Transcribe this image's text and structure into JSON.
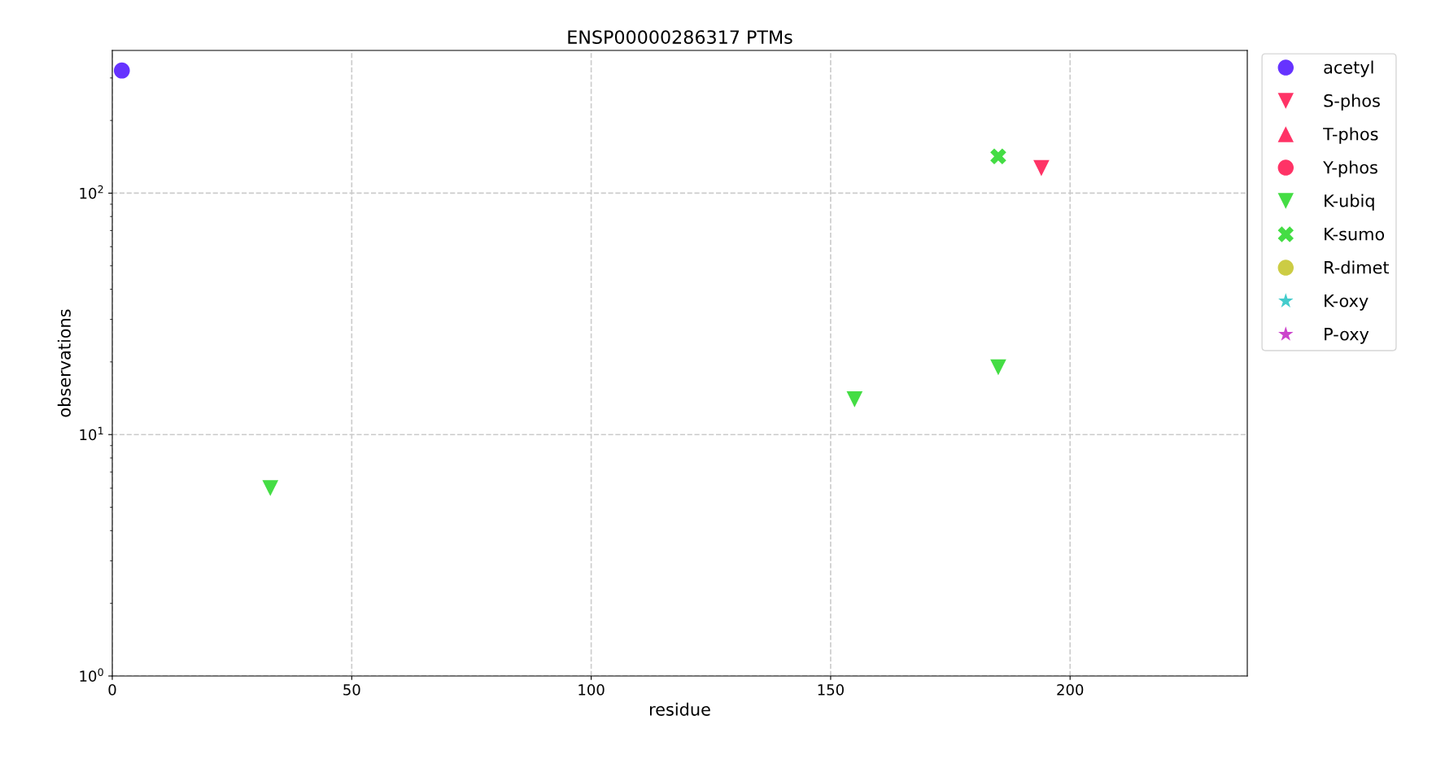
{
  "chart_data": {
    "type": "scatter",
    "title": "ENSP00000286317 PTMs",
    "xlabel": "residue",
    "ylabel": "observations",
    "log": "y",
    "grid": true,
    "line_style": "dashed",
    "legend": "top right",
    "xlim": [
      0,
      237
    ],
    "xticks": [
      0,
      50,
      100,
      150,
      200
    ],
    "ylim": [
      1,
      390
    ],
    "yticks": [
      {
        "value": 1,
        "label": "10$^{0}$"
      },
      {
        "value": 10,
        "label": "10$^{1}$"
      },
      {
        "value": 100,
        "label": "10$^{2}$"
      }
    ],
    "series": [
      {
        "name": "acetyl",
        "color": "#6633ff",
        "marker": "circle",
        "x": [
          2
        ],
        "values": [
          322
        ]
      },
      {
        "name": "S-phos",
        "color": "#ff3366",
        "marker": "triangle_down",
        "x": [
          194
        ],
        "values": [
          127
        ]
      },
      {
        "name": "T-phos",
        "color": "#ff3366",
        "marker": "triangle"
      },
      {
        "name": "Y-phos",
        "color": "#ff3366",
        "marker": "circle"
      },
      {
        "name": "K-ubiq",
        "color": "#44dd44",
        "marker": "triangle_down",
        "x": [
          33,
          155,
          185
        ],
        "values": [
          6,
          14,
          19
        ]
      },
      {
        "name": "K-sumo",
        "color": "#44dd44",
        "marker": "cross",
        "x": [
          185
        ],
        "values": [
          142
        ]
      },
      {
        "name": "R-dimet",
        "color": "#cccc44",
        "marker": "circle"
      },
      {
        "name": "K-oxy",
        "color": "#44cccc",
        "marker": "star"
      },
      {
        "name": "P-oxy",
        "color": "#cc44cc",
        "marker": "star"
      }
    ]
  }
}
